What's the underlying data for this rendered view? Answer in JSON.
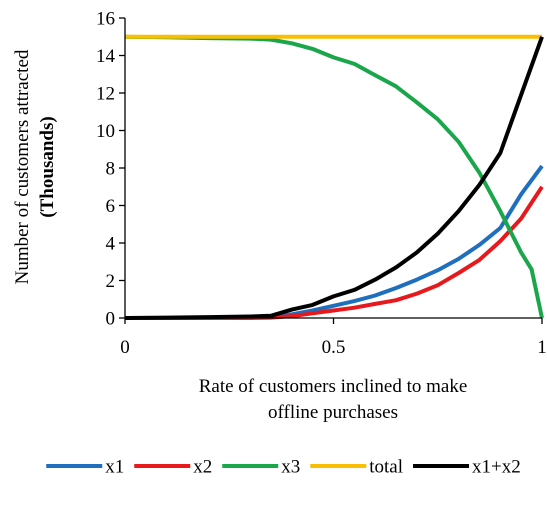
{
  "chart_data": {
    "type": "line",
    "xlabel_lines": [
      "Rate of customers inclined to make",
      "offline purchases"
    ],
    "ylabel_lines": [
      "Number of customers attracted",
      "(Thousands)"
    ],
    "xlim": [
      0,
      1
    ],
    "ylim": [
      0,
      16
    ],
    "x_ticks": [
      0,
      0.5,
      1
    ],
    "x_tick_labels": [
      "0",
      "0.5",
      "1"
    ],
    "y_ticks": [
      0,
      2,
      4,
      6,
      8,
      10,
      12,
      14,
      16
    ],
    "y_tick_labels": [
      "0",
      "2",
      "4",
      "6",
      "8",
      "10",
      "12",
      "14",
      "16"
    ],
    "grid": false,
    "legend_position": "bottom",
    "series": [
      {
        "name": "x1",
        "color": "#1f6fbf",
        "x": [
          0,
          0.1,
          0.2,
          0.3,
          0.35,
          0.4,
          0.45,
          0.5,
          0.55,
          0.6,
          0.65,
          0.7,
          0.75,
          0.8,
          0.85,
          0.9,
          0.95,
          1.0
        ],
        "y": [
          0,
          0,
          0,
          0.02,
          0.05,
          0.2,
          0.4,
          0.65,
          0.9,
          1.2,
          1.6,
          2.05,
          2.55,
          3.15,
          3.9,
          4.8,
          6.6,
          8.1
        ]
      },
      {
        "name": "x2",
        "color": "#e8191c",
        "x": [
          0,
          0.1,
          0.2,
          0.3,
          0.35,
          0.4,
          0.45,
          0.5,
          0.55,
          0.6,
          0.65,
          0.7,
          0.75,
          0.8,
          0.85,
          0.9,
          0.95,
          1.0
        ],
        "y": [
          0,
          0,
          0,
          0,
          0.02,
          0.1,
          0.25,
          0.4,
          0.55,
          0.75,
          0.95,
          1.3,
          1.75,
          2.4,
          3.1,
          4.1,
          5.3,
          7.0
        ]
      },
      {
        "name": "x3",
        "color": "#1aa64a",
        "x": [
          0,
          0.1,
          0.2,
          0.3,
          0.35,
          0.4,
          0.45,
          0.5,
          0.55,
          0.6,
          0.65,
          0.7,
          0.75,
          0.8,
          0.85,
          0.9,
          0.95,
          0.975,
          1.0
        ],
        "y": [
          15,
          14.97,
          14.93,
          14.9,
          14.85,
          14.65,
          14.35,
          13.9,
          13.55,
          12.95,
          12.35,
          11.5,
          10.6,
          9.4,
          7.75,
          5.7,
          3.5,
          2.6,
          0
        ]
      },
      {
        "name": "total",
        "color": "#f9bf00",
        "x": [
          0,
          1
        ],
        "y": [
          15,
          15
        ]
      },
      {
        "name": "x1+x2",
        "color": "#000000",
        "x": [
          0,
          0.1,
          0.2,
          0.3,
          0.35,
          0.4,
          0.45,
          0.5,
          0.55,
          0.6,
          0.65,
          0.7,
          0.75,
          0.8,
          0.85,
          0.9,
          0.95,
          1.0
        ],
        "y": [
          0,
          0.02,
          0.05,
          0.08,
          0.12,
          0.45,
          0.7,
          1.15,
          1.5,
          2.05,
          2.7,
          3.5,
          4.5,
          5.7,
          7.1,
          8.8,
          11.9,
          15.0
        ]
      }
    ]
  }
}
